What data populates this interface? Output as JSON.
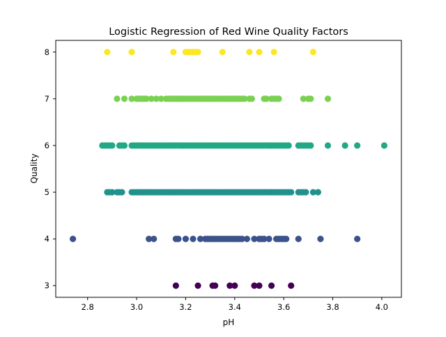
{
  "chart_data": {
    "type": "scatter",
    "title": "Logistic Regression of Red Wine Quality Factors",
    "xlabel": "pH",
    "ylabel": "Quality",
    "xlim": [
      2.67,
      4.08
    ],
    "ylim": [
      2.75,
      8.25
    ],
    "x_ticks": [
      2.8,
      3.0,
      3.2,
      3.4,
      3.6,
      3.8,
      4.0
    ],
    "x_tick_labels": [
      "2.8",
      "3.0",
      "3.2",
      "3.4",
      "3.6",
      "3.8",
      "4.0"
    ],
    "y_ticks": [
      3,
      4,
      5,
      6,
      7,
      8
    ],
    "y_tick_labels": [
      "3",
      "4",
      "5",
      "6",
      "7",
      "8"
    ],
    "grid": false,
    "legend": "none",
    "colormap": "viridis",
    "colors": {
      "3": "#440154",
      "4": "#3b528b",
      "5": "#21918c",
      "6": "#22a884",
      "7": "#7ad151",
      "8": "#fde725"
    },
    "series": [
      {
        "quality": 8,
        "x": [
          2.88,
          2.98,
          3.15,
          3.2,
          3.21,
          3.22,
          3.23,
          3.24,
          3.25,
          3.35,
          3.46,
          3.5,
          3.56,
          3.72
        ]
      },
      {
        "quality": 7,
        "x": [
          2.92,
          2.95,
          2.98,
          3.0,
          3.01,
          3.02,
          3.03,
          3.04,
          3.06,
          3.08,
          3.1,
          3.12,
          3.13,
          3.14,
          3.15,
          3.16,
          3.17,
          3.18,
          3.19,
          3.2,
          3.21,
          3.22,
          3.23,
          3.24,
          3.25,
          3.26,
          3.27,
          3.28,
          3.29,
          3.3,
          3.31,
          3.32,
          3.33,
          3.34,
          3.35,
          3.36,
          3.37,
          3.38,
          3.39,
          3.4,
          3.41,
          3.42,
          3.43,
          3.44,
          3.46,
          3.47,
          3.52,
          3.53,
          3.55,
          3.56,
          3.57,
          3.58,
          3.68,
          3.7,
          3.71,
          3.78
        ]
      },
      {
        "quality": 6,
        "x": [
          2.86,
          2.87,
          2.88,
          2.89,
          2.9,
          2.93,
          2.94,
          2.95,
          2.98,
          2.99,
          3.0,
          3.01,
          3.02,
          3.03,
          3.04,
          3.05,
          3.06,
          3.07,
          3.08,
          3.09,
          3.1,
          3.11,
          3.12,
          3.13,
          3.14,
          3.15,
          3.16,
          3.17,
          3.18,
          3.19,
          3.2,
          3.21,
          3.22,
          3.23,
          3.24,
          3.25,
          3.26,
          3.27,
          3.28,
          3.29,
          3.3,
          3.31,
          3.32,
          3.33,
          3.34,
          3.35,
          3.36,
          3.37,
          3.38,
          3.39,
          3.4,
          3.41,
          3.42,
          3.43,
          3.44,
          3.45,
          3.46,
          3.47,
          3.48,
          3.49,
          3.5,
          3.51,
          3.52,
          3.53,
          3.54,
          3.55,
          3.56,
          3.57,
          3.58,
          3.59,
          3.6,
          3.61,
          3.62,
          3.66,
          3.67,
          3.68,
          3.69,
          3.7,
          3.71,
          3.78,
          3.85,
          3.9,
          4.01
        ]
      },
      {
        "quality": 5,
        "x": [
          2.88,
          2.89,
          2.9,
          2.92,
          2.93,
          2.94,
          2.98,
          2.99,
          3.0,
          3.01,
          3.02,
          3.03,
          3.04,
          3.05,
          3.06,
          3.07,
          3.08,
          3.09,
          3.1,
          3.11,
          3.12,
          3.13,
          3.14,
          3.15,
          3.16,
          3.17,
          3.18,
          3.19,
          3.2,
          3.21,
          3.22,
          3.23,
          3.24,
          3.25,
          3.26,
          3.27,
          3.28,
          3.29,
          3.3,
          3.31,
          3.32,
          3.33,
          3.34,
          3.35,
          3.36,
          3.37,
          3.38,
          3.39,
          3.4,
          3.41,
          3.42,
          3.43,
          3.44,
          3.45,
          3.46,
          3.47,
          3.48,
          3.49,
          3.5,
          3.51,
          3.52,
          3.53,
          3.54,
          3.55,
          3.56,
          3.57,
          3.58,
          3.59,
          3.6,
          3.61,
          3.62,
          3.63,
          3.66,
          3.67,
          3.68,
          3.69,
          3.72,
          3.74
        ]
      },
      {
        "quality": 4,
        "x": [
          2.74,
          3.05,
          3.07,
          3.16,
          3.17,
          3.2,
          3.23,
          3.26,
          3.28,
          3.29,
          3.3,
          3.31,
          3.32,
          3.33,
          3.34,
          3.35,
          3.36,
          3.37,
          3.38,
          3.39,
          3.4,
          3.41,
          3.42,
          3.43,
          3.45,
          3.48,
          3.5,
          3.51,
          3.52,
          3.54,
          3.57,
          3.58,
          3.59,
          3.6,
          3.61,
          3.66,
          3.75,
          3.9
        ]
      },
      {
        "quality": 3,
        "x": [
          3.16,
          3.25,
          3.31,
          3.32,
          3.38,
          3.4,
          3.48,
          3.5,
          3.55,
          3.63
        ]
      }
    ]
  }
}
